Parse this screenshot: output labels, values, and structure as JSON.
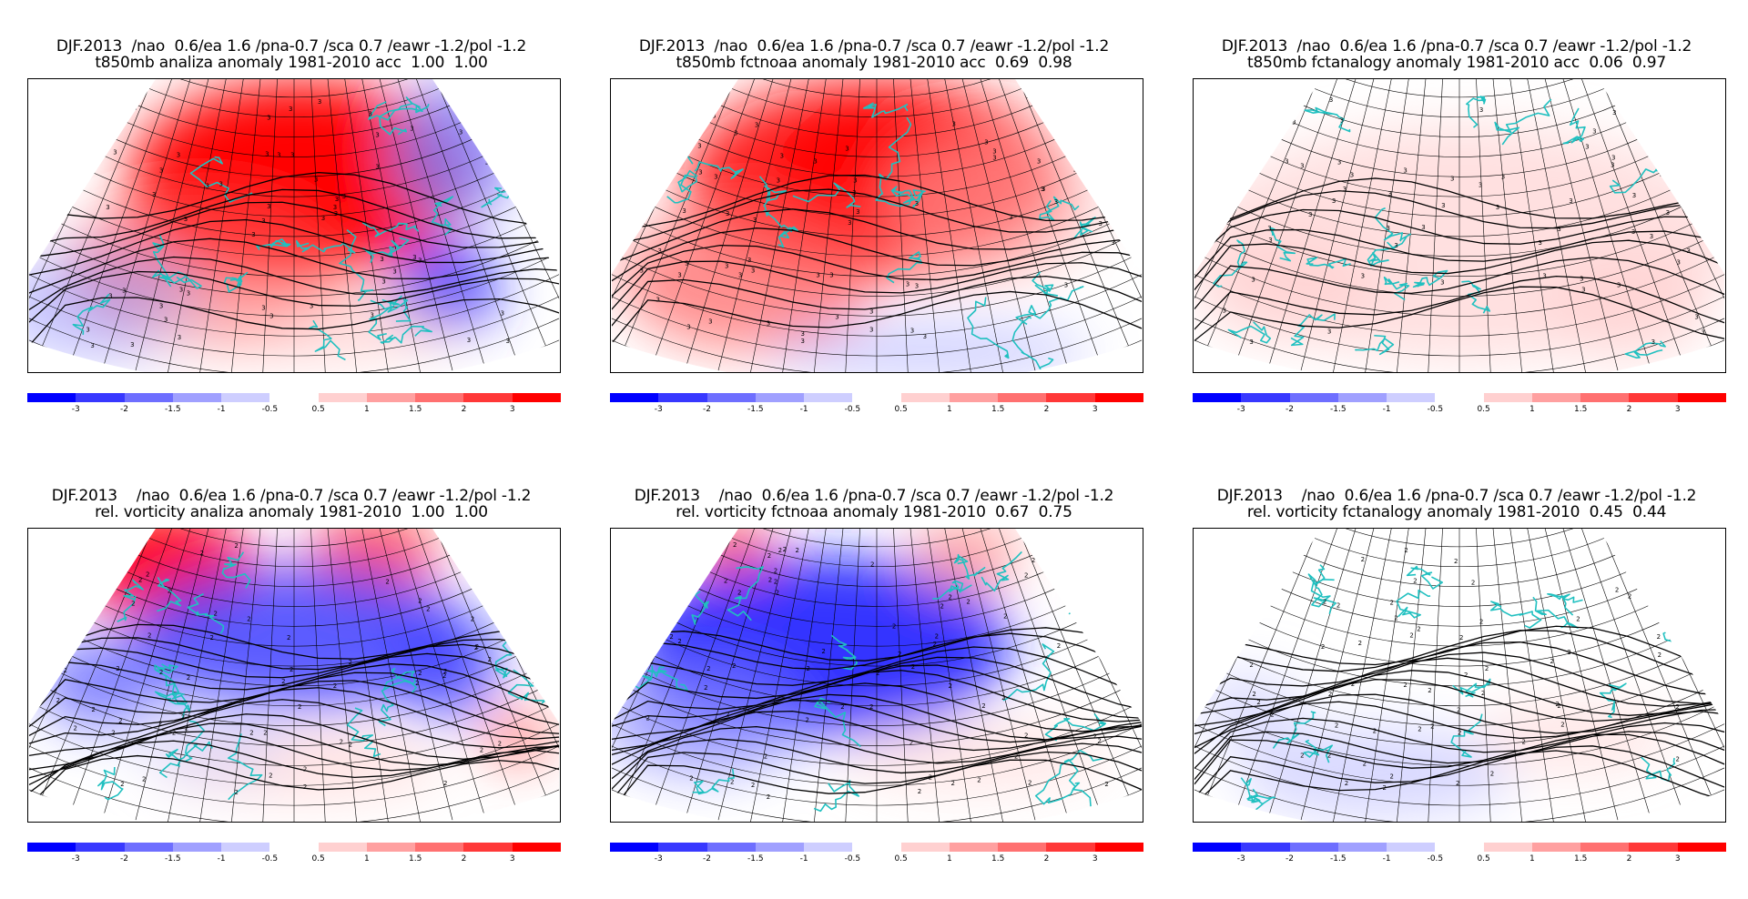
{
  "panels": [
    {
      "title_line1": "DJF.2013  /nao  0.6/ea 1.6 /pna-0.7 /sca 0.7 /eawr -1.2/pol -1.2",
      "title_line2": "t850mb analiza anomaly 1981-2010 acc  1.00  1.00",
      "pattern": "t_analiza"
    },
    {
      "title_line1": "DJF.2013  /nao  0.6/ea 1.6 /pna-0.7 /sca 0.7 /eawr -1.2/pol -1.2",
      "title_line2": "t850mb fctnoaa anomaly 1981-2010 acc  0.69  0.98",
      "pattern": "t_noaa"
    },
    {
      "title_line1": "DJF.2013  /nao  0.6/ea 1.6 /pna-0.7 /sca 0.7 /eawr -1.2/pol -1.2",
      "title_line2": "t850mb fctanalogy anomaly 1981-2010 acc  0.06  0.97",
      "pattern": "t_analogy"
    },
    {
      "title_line1": "DJF.2013    /nao  0.6/ea 1.6 /pna-0.7 /sca 0.7 /eawr -1.2/pol -1.2",
      "title_line2": "rel. vorticity analiza anomaly 1981-2010  1.00  1.00",
      "pattern": "v_analiza"
    },
    {
      "title_line1": "DJF.2013    /nao  0.6/ea 1.6 /pna-0.7 /sca 0.7 /eawr -1.2/pol -1.2",
      "title_line2": "rel. vorticity fctnoaa anomaly 1981-2010  0.67  0.75",
      "pattern": "v_noaa"
    },
    {
      "title_line1": "DJF.2013    /nao  0.6/ea 1.6 /pna-0.7 /sca 0.7 /eawr -1.2/pol -1.2",
      "title_line2": "rel. vorticity fctanalogy anomaly 1981-2010  0.45  0.44",
      "pattern": "v_analogy"
    }
  ],
  "colorbar": {
    "segments": [
      {
        "color": "#0000ff"
      },
      {
        "color": "#3838ff"
      },
      {
        "color": "#6e6eff"
      },
      {
        "color": "#a0a0ff"
      },
      {
        "color": "#ceceff"
      },
      {
        "color": "#ffffff"
      },
      {
        "color": "#ffd0d0"
      },
      {
        "color": "#ffa0a0"
      },
      {
        "color": "#ff7070"
      },
      {
        "color": "#ff3838"
      },
      {
        "color": "#ff0000"
      }
    ],
    "labels": [
      "-3",
      "-2",
      "-1.5",
      "-1",
      "-0.5",
      "0.5",
      "1",
      "1.5",
      "2",
      "3"
    ]
  },
  "colors": {
    "coastline": "#20c0c0",
    "contour": "#000000",
    "grid": "#000000"
  }
}
